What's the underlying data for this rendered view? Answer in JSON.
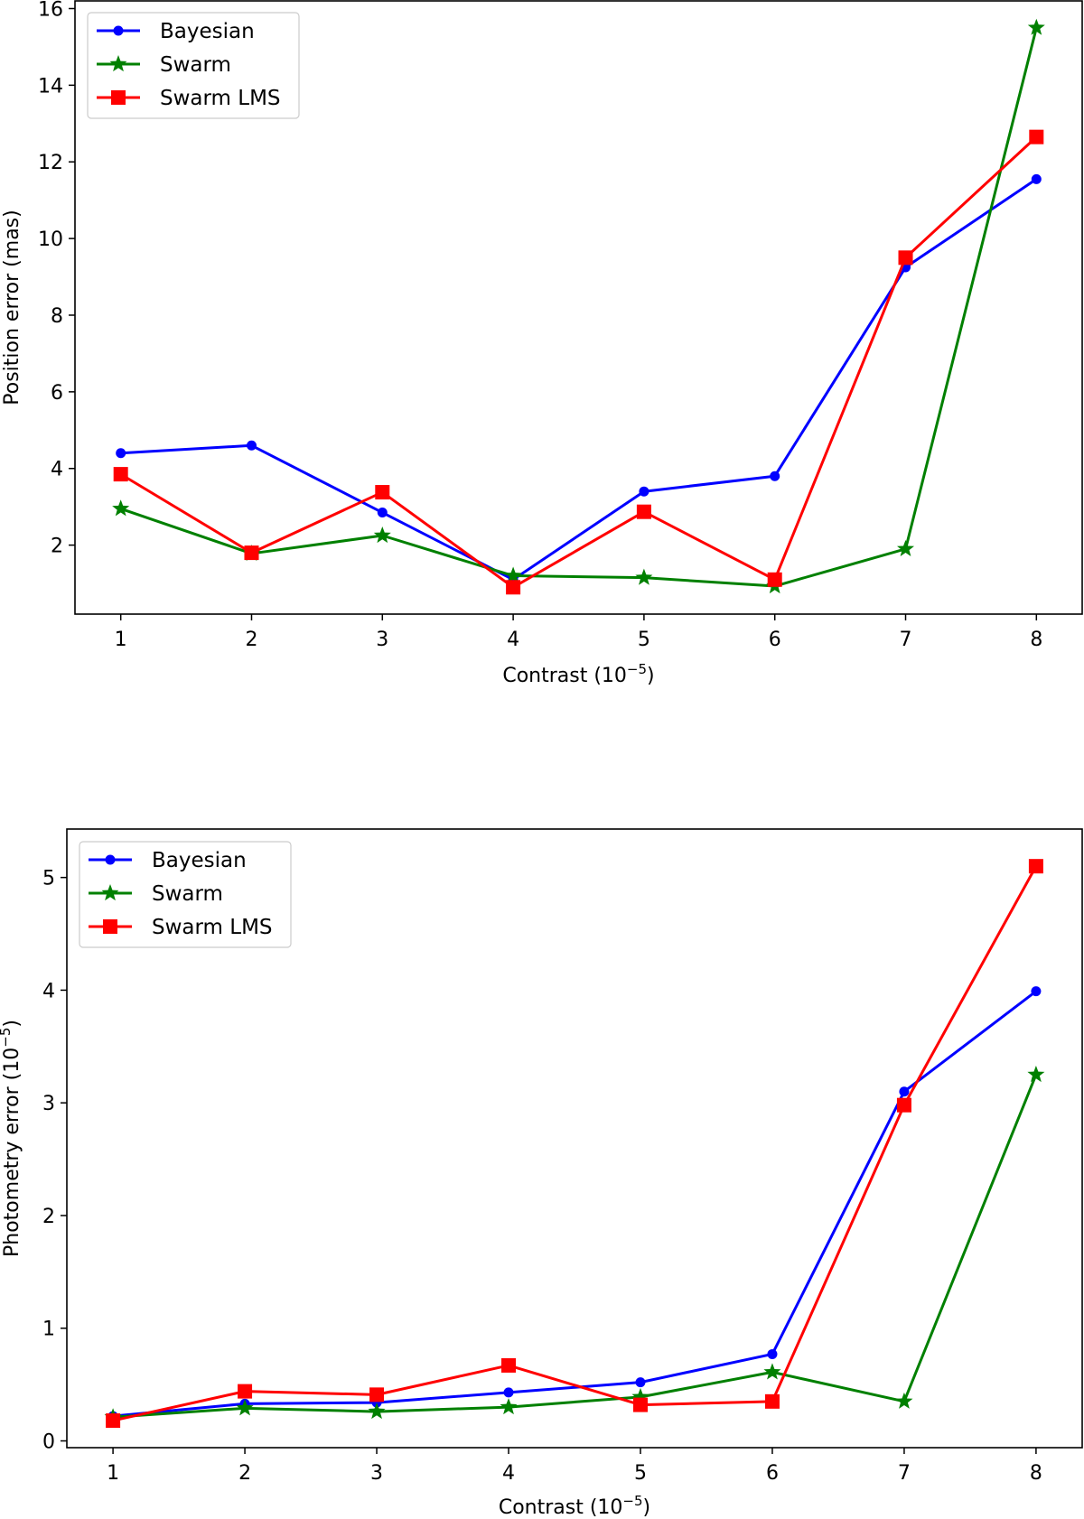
{
  "chart_data": [
    {
      "type": "line",
      "xlabel": "Contrast (10",
      "xlabel_exponent": "−5",
      "xlabel_suffix": ")",
      "ylabel": "Position error (mas)",
      "x": [
        1,
        2,
        3,
        4,
        5,
        6,
        7,
        8
      ],
      "xlim": [
        0.65,
        8.35
      ],
      "ylim": [
        0.2,
        16.2
      ],
      "xticks": [
        1,
        2,
        3,
        4,
        5,
        6,
        7,
        8
      ],
      "yticks": [
        2,
        4,
        6,
        8,
        10,
        12,
        14,
        16
      ],
      "grid": false,
      "legend_position": "upper-left",
      "series": [
        {
          "name": "Bayesian",
          "marker": "circle",
          "color": "#0000ff",
          "values": [
            4.4,
            4.6,
            2.85,
            1.1,
            3.4,
            3.8,
            9.25,
            11.55
          ]
        },
        {
          "name": "Swarm",
          "marker": "star",
          "color": "#008000",
          "values": [
            2.95,
            1.78,
            2.25,
            1.2,
            1.15,
            0.93,
            1.9,
            15.5
          ]
        },
        {
          "name": "Swarm LMS",
          "marker": "square",
          "color": "#ff0000",
          "values": [
            3.85,
            1.8,
            3.38,
            0.9,
            2.87,
            1.1,
            9.5,
            12.65
          ]
        }
      ]
    },
    {
      "type": "line",
      "xlabel": "Contrast (10",
      "xlabel_exponent": "−5",
      "xlabel_suffix": ")",
      "ylabel": "Photometry error (10",
      "ylabel_exponent": "−5",
      "ylabel_suffix": ")",
      "x": [
        1,
        2,
        3,
        4,
        5,
        6,
        7,
        8
      ],
      "xlim": [
        0.65,
        8.35
      ],
      "ylim": [
        -0.06,
        5.43
      ],
      "xticks": [
        1,
        2,
        3,
        4,
        5,
        6,
        7,
        8
      ],
      "yticks": [
        0,
        1,
        2,
        3,
        4,
        5
      ],
      "grid": false,
      "legend_position": "upper-left",
      "series": [
        {
          "name": "Bayesian",
          "marker": "circle",
          "color": "#0000ff",
          "values": [
            0.22,
            0.33,
            0.34,
            0.43,
            0.52,
            0.77,
            3.1,
            3.99
          ]
        },
        {
          "name": "Swarm",
          "marker": "star",
          "color": "#008000",
          "values": [
            0.21,
            0.29,
            0.26,
            0.3,
            0.39,
            0.61,
            0.35,
            3.25
          ]
        },
        {
          "name": "Swarm LMS",
          "marker": "square",
          "color": "#ff0000",
          "values": [
            0.18,
            0.44,
            0.41,
            0.67,
            0.32,
            0.35,
            2.98,
            5.1
          ]
        }
      ]
    }
  ]
}
